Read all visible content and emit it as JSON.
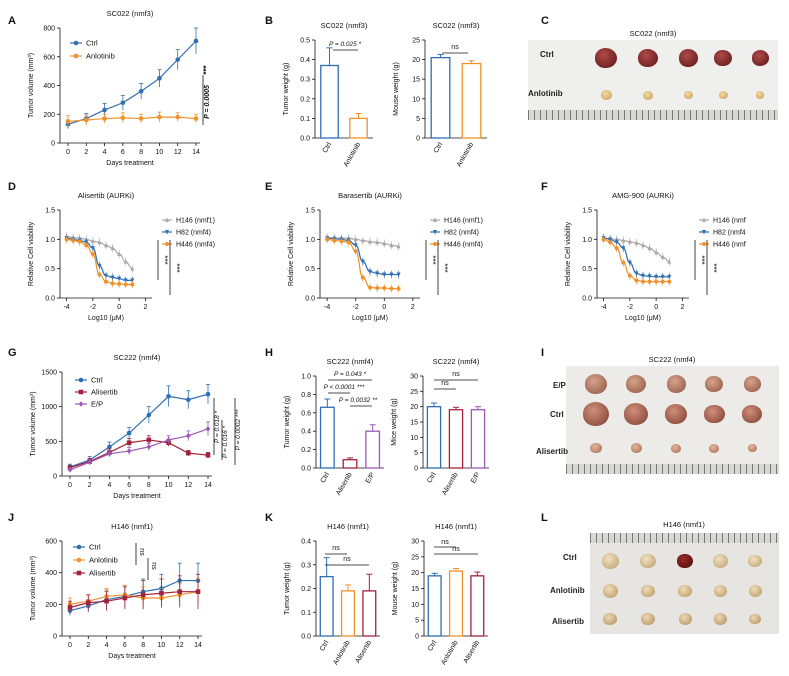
{
  "panels": {
    "A": {
      "letter": "A",
      "title": "SC022 (nmf3)",
      "ylabel": "Tumor volume (mm³)",
      "xlabel": "Days treatment",
      "ytick_labels": [
        "0",
        "200",
        "400",
        "600",
        "800"
      ],
      "xtick_labels": [
        "0",
        "2",
        "4",
        "6",
        "8",
        "10",
        "12",
        "14"
      ],
      "pvalue": "P = 0.0005",
      "stars": "***"
    },
    "B": {
      "letter": "B",
      "left_title": "SC022 (nmf3)",
      "right_title": "SC022 (nmf3)",
      "left_ylabel": "Tumor weight (g)",
      "right_ylabel": "Mouse weight (g)",
      "left_ytick_labels": [
        "0.0",
        "0.1",
        "0.2",
        "0.3",
        "0.4",
        "0.5"
      ],
      "right_ytick_labels": [
        "0",
        "5",
        "10",
        "15",
        "20",
        "25"
      ],
      "categories": [
        "Ctrl",
        "Anlotinib"
      ],
      "pvalue": "P = 0.025",
      "stars": "*",
      "ns": "ns"
    },
    "C": {
      "letter": "C",
      "title": "SC022 (nmf3)",
      "row_labels": [
        "Ctrl",
        "Anlotinib"
      ]
    },
    "D": {
      "letter": "D",
      "title": "Alisertib (AURKi)",
      "ylabel": "Relative Cell viability",
      "xlabel": "Log10 (μM)",
      "ytick_labels": [
        "0.0",
        "0.5",
        "1.0",
        "1.5"
      ],
      "xtick_labels": [
        "-4",
        "-2",
        "0",
        "2"
      ],
      "legend": [
        "H146 (nmf1)",
        "H82 (nmf4)",
        "H446 (nmf4)"
      ],
      "stars": [
        "***",
        "***"
      ]
    },
    "E": {
      "letter": "E",
      "title": "Barasertib (AURKi)",
      "ylabel": "Relative Cell viability",
      "xlabel": "Log10 (μM)",
      "ytick_labels": [
        "0.0",
        "0.5",
        "1.0",
        "1.5"
      ],
      "xtick_labels": [
        "-4",
        "-2",
        "0",
        "2"
      ],
      "legend": [
        "H146 (nmf1)",
        "H82 (nmf4)",
        "H446 (nmf4)"
      ],
      "stars": [
        "***",
        "***"
      ]
    },
    "F": {
      "letter": "F",
      "title": "AMG-900 (AURKi)",
      "ylabel": "Relative Cell viability",
      "xlabel": "Log10 (μM)",
      "ytick_labels": [
        "0.0",
        "0.5",
        "1.0",
        "1.5"
      ],
      "xtick_labels": [
        "-4",
        "-2",
        "0",
        "2"
      ],
      "legend": [
        "H146 (nmf",
        "H82 (nmf4",
        "H446 (nmf"
      ],
      "stars": [
        "***",
        "***"
      ]
    },
    "G": {
      "letter": "G",
      "title": "SC222 (nmf4)",
      "ylabel": "Tumor volume (mm³)",
      "xlabel": "Days treatment",
      "ytick_labels": [
        "0",
        "500",
        "1000",
        "1500"
      ],
      "xtick_labels": [
        "0",
        "2",
        "4",
        "6",
        "8",
        "10",
        "12",
        "14"
      ],
      "pvalues": [
        "P = 0.018",
        "P = 0.016",
        "P = 0.0002"
      ],
      "stars": [
        "*",
        "*",
        "***"
      ]
    },
    "H": {
      "letter": "H",
      "left_title": "SC222 (nmf4)",
      "right_title": "SC222 (nmf4)",
      "left_ylabel": "Tumor weight (g)",
      "right_ylabel": "Mice weight (g)",
      "left_ytick_labels": [
        "0.0",
        "0.2",
        "0.4",
        "0.6",
        "0.8",
        "1.0"
      ],
      "right_ytick_labels": [
        "0",
        "5",
        "10",
        "15",
        "20",
        "25",
        "30"
      ],
      "categories": [
        "Ctrl",
        "Alisertib",
        "E/P"
      ],
      "pvalues": [
        "P = 0.043",
        "P < 0.0001",
        "P = 0.0032"
      ],
      "stars": [
        "*",
        "***",
        "**"
      ],
      "ns": "ns"
    },
    "I": {
      "letter": "I",
      "title": "SC222 (nmf4)",
      "row_labels": [
        "E/P",
        "Ctrl",
        "Alisertib"
      ]
    },
    "J": {
      "letter": "J",
      "title": "H146 (nmf1)",
      "ylabel": "Tumor volume (mm³)",
      "xlabel": "Days treatment",
      "ytick_labels": [
        "0",
        "200",
        "400",
        "600"
      ],
      "xtick_labels": [
        "0",
        "2",
        "4",
        "6",
        "8",
        "10",
        "12",
        "14"
      ],
      "ns": "ns"
    },
    "K": {
      "letter": "K",
      "left_title": "H146 (nmf1)",
      "right_title": "H146 (nmf1)",
      "left_ylabel": "Tumor weight (g)",
      "right_ylabel": "Mouse weight (g)",
      "left_ytick_labels": [
        "0.0",
        "0.1",
        "0.2",
        "0.3",
        "0.4"
      ],
      "right_ytick_labels": [
        "0",
        "5",
        "10",
        "15",
        "20",
        "25",
        "30"
      ],
      "categories": [
        "Ctrl",
        "Anlotinib",
        "Alisertib"
      ],
      "ns": "ns"
    },
    "L": {
      "letter": "L",
      "title": "H146 (nmf1)",
      "row_labels": [
        "Ctrl",
        "Anlotinib",
        "Alisertib"
      ]
    }
  },
  "colors": {
    "ctrl": "#2f6fb3",
    "anlotinib": "#f0922b",
    "alisertib": "#a3223b",
    "ep": "#9b59b6",
    "h146": "#a8a8a8",
    "h82": "#2f6fb3",
    "h446": "#f0922b"
  },
  "chart_data": [
    {
      "panel": "A",
      "type": "line",
      "title": "SC022 (nmf3)",
      "xlabel": "Days treatment",
      "ylabel": "Tumor volume (mm³)",
      "xlim": [
        0,
        14
      ],
      "ylim": [
        0,
        800
      ],
      "x": [
        0,
        2,
        4,
        6,
        8,
        10,
        12,
        14
      ],
      "series": [
        {
          "name": "Ctrl",
          "values": [
            130,
            170,
            230,
            280,
            360,
            450,
            580,
            710
          ],
          "errors": [
            30,
            35,
            45,
            50,
            55,
            60,
            70,
            90
          ]
        },
        {
          "name": "Anlotinib",
          "values": [
            150,
            160,
            170,
            175,
            170,
            180,
            180,
            170
          ],
          "errors": [
            40,
            35,
            30,
            35,
            30,
            35,
            30,
            30
          ]
        }
      ]
    },
    {
      "panel": "B-left",
      "type": "bar",
      "title": "SC022 (nmf3)",
      "ylabel": "Tumor weight (g)",
      "ylim": [
        0,
        0.5
      ],
      "categories": [
        "Ctrl",
        "Anlotinib"
      ],
      "values": [
        0.37,
        0.1
      ],
      "errors": [
        0.09,
        0.025
      ]
    },
    {
      "panel": "B-right",
      "type": "bar",
      "title": "SC022 (nmf3)",
      "ylabel": "Mouse weight (g)",
      "ylim": [
        0,
        25
      ],
      "categories": [
        "Ctrl",
        "Anlotinib"
      ],
      "values": [
        20.5,
        19.0
      ],
      "errors": [
        0.8,
        0.7
      ]
    },
    {
      "panel": "D",
      "type": "scatter",
      "title": "Alisertib (AURKi)",
      "xlabel": "Log10 (μM)",
      "ylabel": "Relative Cell viability",
      "xlim": [
        -4.5,
        2.5
      ],
      "ylim": [
        0,
        1.5
      ],
      "x": [
        -4,
        -3.5,
        -3,
        -2.5,
        -2,
        -1.5,
        -1,
        -0.5,
        0,
        0.5,
        1
      ],
      "series": [
        {
          "name": "H146 (nmf1)",
          "values": [
            1.05,
            1.03,
            1.02,
            1.0,
            0.97,
            0.95,
            0.9,
            0.85,
            0.75,
            0.62,
            0.5
          ]
        },
        {
          "name": "H82 (nmf4)",
          "values": [
            1.02,
            1.0,
            0.98,
            0.95,
            0.85,
            0.55,
            0.38,
            0.35,
            0.33,
            0.3,
            0.3
          ]
        },
        {
          "name": "H446 (nmf4)",
          "values": [
            1.0,
            0.98,
            0.96,
            0.9,
            0.75,
            0.4,
            0.28,
            0.25,
            0.24,
            0.23,
            0.23
          ]
        }
      ]
    },
    {
      "panel": "E",
      "type": "scatter",
      "title": "Barasertib (AURKi)",
      "xlabel": "Log10 (μM)",
      "ylabel": "Relative Cell viability",
      "xlim": [
        -4.5,
        2.5
      ],
      "ylim": [
        0,
        1.5
      ],
      "x": [
        -4,
        -3.5,
        -3,
        -2.5,
        -2,
        -1.5,
        -1,
        -0.5,
        0,
        0.5,
        1
      ],
      "series": [
        {
          "name": "H146 (nmf1)",
          "values": [
            1.03,
            1.02,
            1.02,
            1.02,
            1.0,
            0.98,
            0.96,
            0.95,
            0.93,
            0.9,
            0.88
          ]
        },
        {
          "name": "H82 (nmf4)",
          "values": [
            1.02,
            1.01,
            1.0,
            0.98,
            0.9,
            0.62,
            0.45,
            0.42,
            0.4,
            0.4,
            0.4
          ]
        },
        {
          "name": "H446 (nmf4)",
          "values": [
            1.0,
            0.98,
            0.97,
            0.95,
            0.8,
            0.35,
            0.18,
            0.17,
            0.17,
            0.16,
            0.16
          ]
        }
      ]
    },
    {
      "panel": "F",
      "type": "scatter",
      "title": "AMG-900 (AURKi)",
      "xlabel": "Log10 (μM)",
      "ylabel": "Relative Cell viability",
      "xlim": [
        -4.5,
        2.5
      ],
      "ylim": [
        0,
        1.5
      ],
      "x": [
        -4,
        -3.5,
        -3,
        -2.5,
        -2,
        -1.5,
        -1,
        -0.5,
        0,
        0.5,
        1
      ],
      "series": [
        {
          "name": "H146 (nmf1)",
          "values": [
            1.02,
            1.01,
            1.0,
            0.98,
            0.96,
            0.94,
            0.9,
            0.85,
            0.78,
            0.7,
            0.62
          ]
        },
        {
          "name": "H82 (nmf4)",
          "values": [
            1.02,
            1.0,
            0.95,
            0.85,
            0.6,
            0.42,
            0.38,
            0.37,
            0.36,
            0.36,
            0.36
          ]
        },
        {
          "name": "H446 (nmf4)",
          "values": [
            1.0,
            0.95,
            0.85,
            0.6,
            0.38,
            0.3,
            0.28,
            0.28,
            0.28,
            0.28,
            0.28
          ]
        }
      ]
    },
    {
      "panel": "G",
      "type": "line",
      "title": "SC222 (nmf4)",
      "xlabel": "Days treatment",
      "ylabel": "Tumor volume (mm³)",
      "xlim": [
        0,
        14
      ],
      "ylim": [
        0,
        1500
      ],
      "x": [
        0,
        2,
        4,
        6,
        8,
        10,
        12,
        14
      ],
      "series": [
        {
          "name": "Ctrl",
          "values": [
            130,
            230,
            420,
            620,
            880,
            1150,
            1100,
            1180
          ],
          "errors": [
            40,
            50,
            70,
            80,
            120,
            150,
            130,
            140
          ]
        },
        {
          "name": "Alisertib",
          "values": [
            120,
            210,
            340,
            480,
            520,
            480,
            330,
            300
          ],
          "errors": [
            30,
            40,
            50,
            60,
            60,
            50,
            40,
            40
          ]
        },
        {
          "name": "E/P",
          "values": [
            90,
            200,
            320,
            360,
            420,
            520,
            580,
            680
          ],
          "errors": [
            30,
            40,
            40,
            50,
            50,
            60,
            70,
            100
          ]
        }
      ]
    },
    {
      "panel": "H-left",
      "type": "bar",
      "title": "SC222 (nmf4)",
      "ylabel": "Tumor weight (g)",
      "ylim": [
        0,
        1.0
      ],
      "categories": [
        "Ctrl",
        "Alisertib",
        "E/P"
      ],
      "values": [
        0.66,
        0.09,
        0.4
      ],
      "errors": [
        0.09,
        0.02,
        0.07
      ]
    },
    {
      "panel": "H-right",
      "type": "bar",
      "title": "SC222 (nmf4)",
      "ylabel": "Mice weight (g)",
      "ylim": [
        0,
        30
      ],
      "categories": [
        "Ctrl",
        "Alisertib",
        "E/P"
      ],
      "values": [
        20.0,
        19.0,
        19.0
      ],
      "errors": [
        1.2,
        0.8,
        1.0
      ]
    },
    {
      "panel": "J",
      "type": "line",
      "title": "H146 (nmf1)",
      "xlabel": "Days treatment",
      "ylabel": "Tumor volume (mm³)",
      "xlim": [
        0,
        14
      ],
      "ylim": [
        0,
        600
      ],
      "x": [
        0,
        2,
        4,
        6,
        8,
        10,
        12,
        14
      ],
      "series": [
        {
          "name": "Ctrl",
          "values": [
            160,
            190,
            230,
            250,
            280,
            300,
            350,
            350
          ],
          "errors": [
            30,
            40,
            60,
            70,
            80,
            90,
            110,
            110
          ]
        },
        {
          "name": "Anlotinib",
          "values": [
            200,
            220,
            250,
            260,
            240,
            240,
            260,
            280
          ],
          "errors": [
            40,
            40,
            50,
            60,
            70,
            60,
            70,
            80
          ]
        },
        {
          "name": "Alisertib",
          "values": [
            180,
            210,
            220,
            240,
            260,
            270,
            280,
            280
          ],
          "errors": [
            40,
            50,
            60,
            70,
            90,
            90,
            100,
            110
          ]
        }
      ]
    },
    {
      "panel": "K-left",
      "type": "bar",
      "title": "H146 (nmf1)",
      "ylabel": "Tumor weight (g)",
      "ylim": [
        0,
        0.4
      ],
      "categories": [
        "Ctrl",
        "Anlotinib",
        "Alisertib"
      ],
      "values": [
        0.25,
        0.19,
        0.19
      ],
      "errors": [
        0.08,
        0.025,
        0.07
      ]
    },
    {
      "panel": "K-right",
      "type": "bar",
      "title": "H146 (nmf1)",
      "ylabel": "Mouse weight (g)",
      "ylim": [
        0,
        30
      ],
      "categories": [
        "Ctrl",
        "Anlotinib",
        "Alisertib"
      ],
      "values": [
        19.0,
        20.5,
        19.0
      ],
      "errors": [
        0.8,
        0.8,
        1.2
      ]
    }
  ]
}
